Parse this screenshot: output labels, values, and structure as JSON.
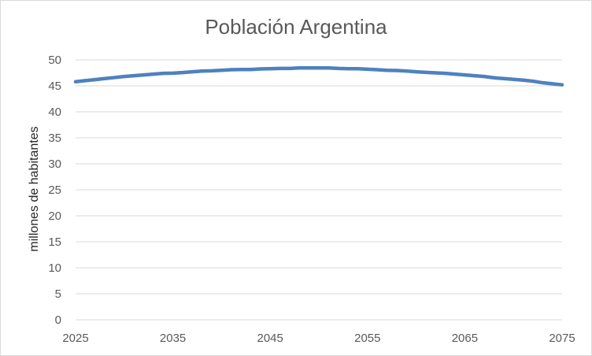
{
  "chart_data": {
    "type": "line",
    "title": "Población Argentina",
    "xlabel": "",
    "ylabel": "millones de habitantes",
    "xlim": [
      2025,
      2075
    ],
    "ylim": [
      0,
      50
    ],
    "x_ticks": [
      2025,
      2035,
      2045,
      2055,
      2065,
      2075
    ],
    "y_ticks": [
      0,
      5,
      10,
      15,
      20,
      25,
      30,
      35,
      40,
      45,
      50
    ],
    "grid": true,
    "legend": "none",
    "colors": {
      "line": "#4f81bd",
      "grid": "#d9d9d9",
      "text": "#595959"
    },
    "series": [
      {
        "x": [
          2025,
          2026,
          2027,
          2028,
          2029,
          2030,
          2031,
          2032,
          2033,
          2034,
          2035,
          2036,
          2037,
          2038,
          2039,
          2040,
          2041,
          2042,
          2043,
          2044,
          2045,
          2046,
          2047,
          2048,
          2049,
          2050,
          2051,
          2052,
          2053,
          2054,
          2055,
          2056,
          2057,
          2058,
          2059,
          2060,
          2061,
          2062,
          2063,
          2064,
          2065,
          2066,
          2067,
          2068,
          2069,
          2070,
          2071,
          2072,
          2073,
          2074,
          2075
        ],
        "values": [
          45.8,
          46.0,
          46.2,
          46.4,
          46.6,
          46.8,
          46.95,
          47.1,
          47.25,
          47.4,
          47.45,
          47.55,
          47.7,
          47.85,
          47.9,
          48.0,
          48.1,
          48.15,
          48.15,
          48.25,
          48.3,
          48.35,
          48.35,
          48.45,
          48.45,
          48.45,
          48.45,
          48.35,
          48.3,
          48.3,
          48.2,
          48.1,
          48.0,
          47.95,
          47.85,
          47.7,
          47.6,
          47.5,
          47.4,
          47.25,
          47.1,
          46.95,
          46.8,
          46.55,
          46.4,
          46.25,
          46.1,
          45.9,
          45.6,
          45.4,
          45.2
        ]
      }
    ]
  }
}
